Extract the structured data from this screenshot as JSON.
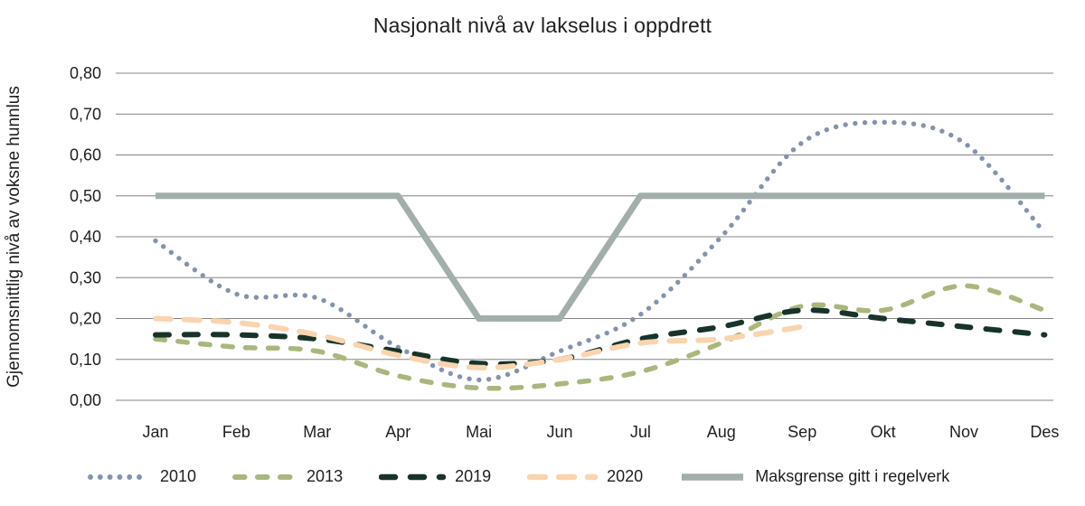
{
  "chart_data": {
    "type": "line",
    "title": "Nasjonalt nivå av lakselus i oppdrett",
    "ylabel": "Gjennomsnittlig nivå av voksne hunnlus",
    "xlabel": "",
    "categories": [
      "Jan",
      "Feb",
      "Mar",
      "Apr",
      "Mai",
      "Jun",
      "Jul",
      "Aug",
      "Sep",
      "Okt",
      "Nov",
      "Des"
    ],
    "y_ticks": [
      "0,00",
      "0,10",
      "0,20",
      "0,30",
      "0,40",
      "0,50",
      "0,60",
      "0,70",
      "0,80"
    ],
    "ylim": [
      0,
      0.8
    ],
    "grid": true,
    "legend_position": "bottom",
    "series": [
      {
        "name": "2010",
        "style": "dotted",
        "color": "#8493ae",
        "values": [
          0.39,
          0.26,
          0.25,
          0.13,
          0.05,
          0.12,
          0.21,
          0.4,
          0.63,
          0.68,
          0.63,
          0.41
        ]
      },
      {
        "name": "2013",
        "style": "dashed",
        "color": "#a9b77d",
        "values": [
          0.15,
          0.13,
          0.12,
          0.06,
          0.03,
          0.04,
          0.07,
          0.14,
          0.23,
          0.22,
          0.28,
          0.22
        ]
      },
      {
        "name": "2019",
        "style": "dashed",
        "color": "#17332a",
        "values": [
          0.16,
          0.16,
          0.15,
          0.12,
          0.09,
          0.1,
          0.15,
          0.18,
          0.22,
          0.2,
          0.18,
          0.16
        ]
      },
      {
        "name": "2020",
        "style": "dashed",
        "color": "#f9d4ae",
        "values": [
          0.2,
          0.19,
          0.16,
          0.11,
          0.08,
          0.1,
          0.14,
          0.15,
          0.18,
          null,
          null,
          null
        ]
      },
      {
        "name": "Maksgrense gitt i regelverk",
        "style": "solid",
        "color": "#a2aeab",
        "values": [
          0.5,
          0.5,
          0.5,
          0.5,
          0.2,
          0.2,
          0.5,
          0.5,
          0.5,
          0.5,
          0.5,
          0.5
        ]
      }
    ],
    "grid_color": "#848484",
    "text_color": "#1f1f1f"
  }
}
